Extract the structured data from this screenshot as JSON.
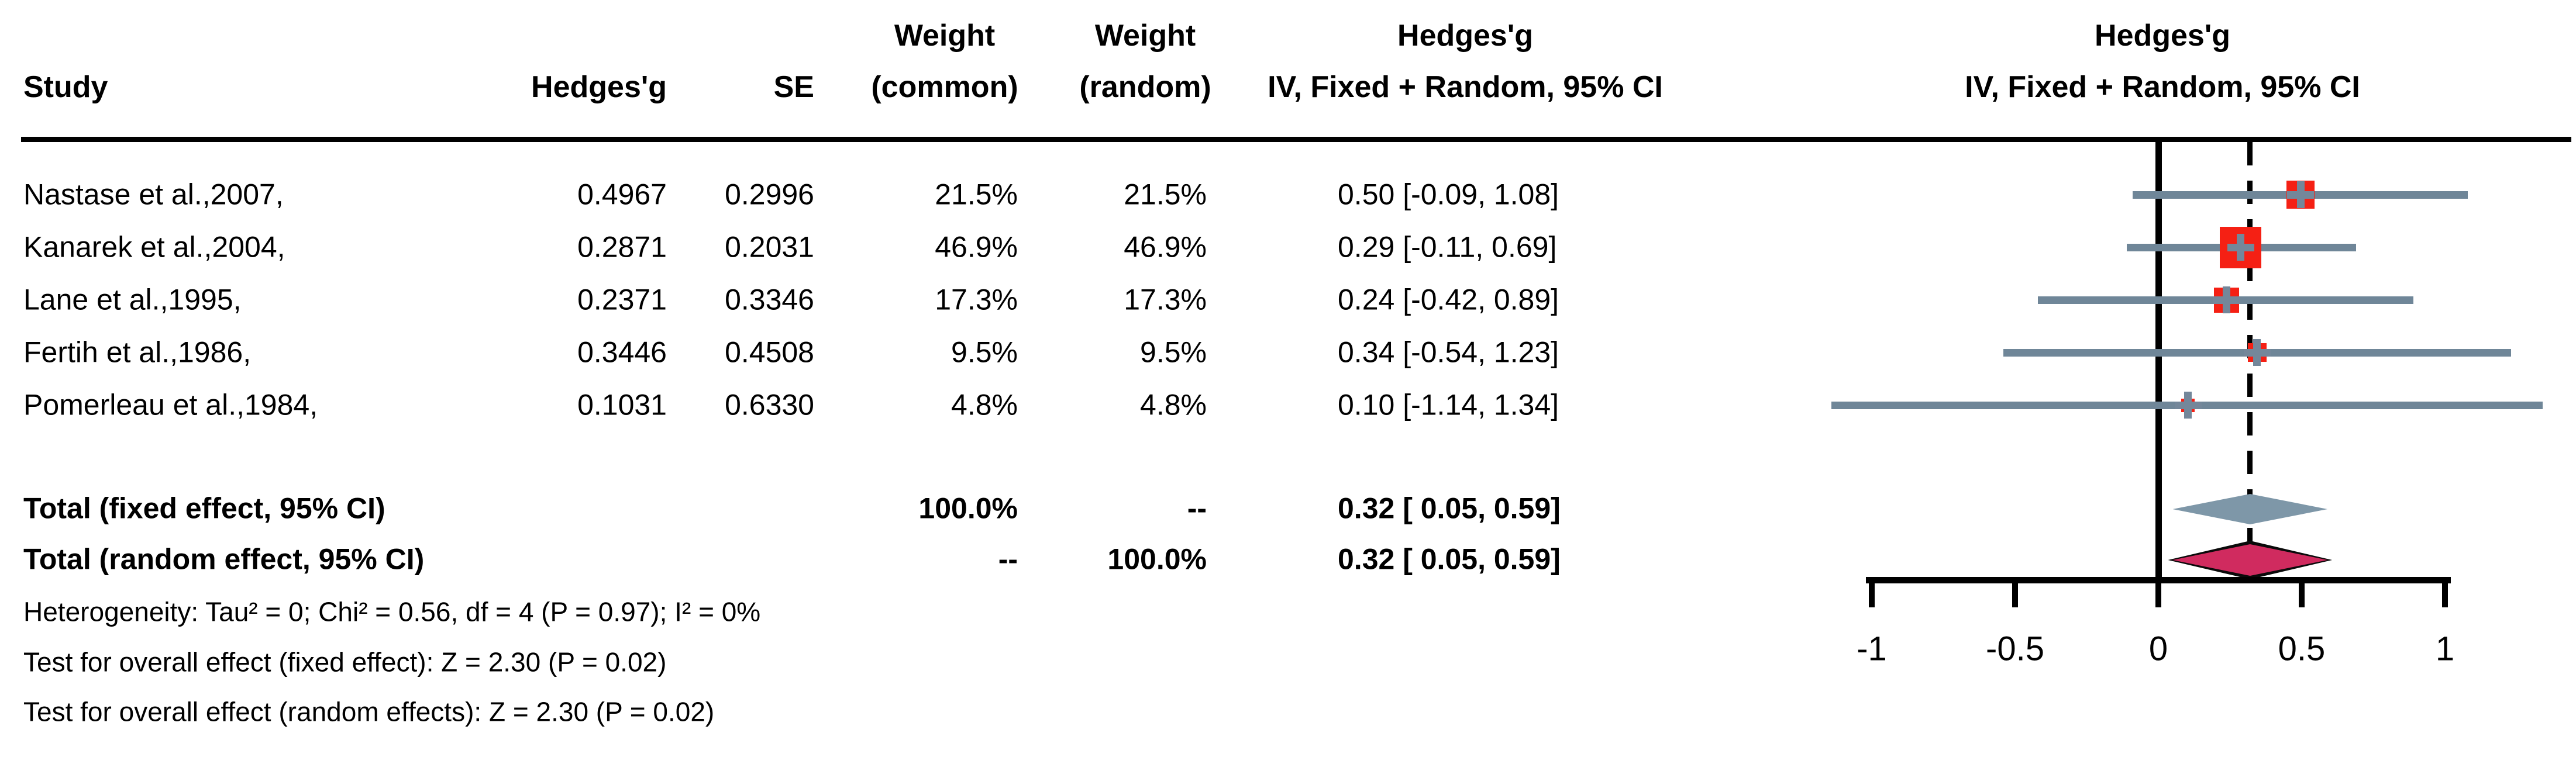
{
  "table": {
    "headers": {
      "study": "Study",
      "hedges_g": "Hedges'g",
      "se": "SE",
      "weight_common_line1": "Weight",
      "weight_common_line2": "(common)",
      "weight_random_line1": "Weight",
      "weight_random_line2": "(random)",
      "ci_col_line1": "Hedges'g",
      "ci_col_line2": "IV, Fixed + Random, 95% CI"
    },
    "rows": [
      {
        "study": "Nastase et al.,2007,",
        "hedges_g": "0.4967",
        "se": "0.2996",
        "weight_common": "21.5%",
        "weight_random": "21.5%",
        "ci_text": "0.50 [-0.09, 1.08]"
      },
      {
        "study": "Kanarek et al.,2004,",
        "hedges_g": "0.2871",
        "se": "0.2031",
        "weight_common": "46.9%",
        "weight_random": "46.9%",
        "ci_text": "0.29 [-0.11, 0.69]"
      },
      {
        "study": "Lane et al.,1995,",
        "hedges_g": "0.2371",
        "se": "0.3346",
        "weight_common": "17.3%",
        "weight_random": "17.3%",
        "ci_text": "0.24 [-0.42, 0.89]"
      },
      {
        "study": "Fertih et al.,1986,",
        "hedges_g": "0.3446",
        "se": "0.4508",
        "weight_common": "9.5%",
        "weight_random": "9.5%",
        "ci_text": "0.34 [-0.54, 1.23]"
      },
      {
        "study": "Pomerleau et al.,1984,",
        "hedges_g": "0.1031",
        "se": "0.6330",
        "weight_common": "4.8%",
        "weight_random": "4.8%",
        "ci_text": "0.10 [-1.14, 1.34]"
      }
    ],
    "totals": [
      {
        "label": "Total (fixed effect, 95% CI)",
        "weight_common": "100.0%",
        "weight_random": "--",
        "ci_text": "0.32 [ 0.05, 0.59]"
      },
      {
        "label": "Total (random effect, 95% CI)",
        "weight_common": "--",
        "weight_random": "100.0%",
        "ci_text": "0.32 [ 0.05, 0.59]"
      }
    ],
    "footnotes": [
      "Heterogeneity: Tau² = 0; Chi² = 0.56, df = 4 (P = 0.97); I² = 0%",
      "Test for overall effect (fixed effect): Z = 2.30 (P = 0.02)",
      "Test for overall effect (random effects): Z = 2.30 (P = 0.02)"
    ]
  },
  "plot_header": {
    "line1": "Hedges'g",
    "line2": "IV, Fixed + Random, 95% CI"
  },
  "chart_data": {
    "type": "forest",
    "effect_measure": "Hedges'g",
    "x_axis": {
      "tick_values": [
        -1,
        -0.5,
        0,
        0.5,
        1
      ],
      "tick_labels": [
        "-1",
        "-0.5",
        "0",
        "0.5",
        "1"
      ],
      "range": [
        -1.35,
        1.4
      ],
      "zero_line": 0,
      "pooled_dashed_line": 0.32
    },
    "studies": [
      {
        "name": "Nastase et al.,2007,",
        "effect": 0.4967,
        "se": 0.2996,
        "ci_low": -0.09,
        "ci_high": 1.08,
        "weight_common_pct": 21.5,
        "weight_random_pct": 21.5
      },
      {
        "name": "Kanarek et al.,2004,",
        "effect": 0.2871,
        "se": 0.2031,
        "ci_low": -0.11,
        "ci_high": 0.69,
        "weight_common_pct": 46.9,
        "weight_random_pct": 46.9
      },
      {
        "name": "Lane et al.,1995,",
        "effect": 0.2371,
        "se": 0.3346,
        "ci_low": -0.42,
        "ci_high": 0.89,
        "weight_common_pct": 17.3,
        "weight_random_pct": 17.3
      },
      {
        "name": "Fertih et al.,1986,",
        "effect": 0.3446,
        "se": 0.4508,
        "ci_low": -0.54,
        "ci_high": 1.23,
        "weight_common_pct": 9.5,
        "weight_random_pct": 9.5
      },
      {
        "name": "Pomerleau et al.,1984,",
        "effect": 0.1031,
        "se": 0.633,
        "ci_low": -1.14,
        "ci_high": 1.34,
        "weight_common_pct": 4.8,
        "weight_random_pct": 4.8
      }
    ],
    "pooled": [
      {
        "label": "Total (fixed effect, 95% CI)",
        "model": "fixed",
        "effect": 0.32,
        "ci_low": 0.05,
        "ci_high": 0.59
      },
      {
        "label": "Total (random effect, 95% CI)",
        "model": "random",
        "effect": 0.32,
        "ci_low": 0.05,
        "ci_high": 0.59
      }
    ],
    "heterogeneity": {
      "tau2": 0,
      "chi2": 0.56,
      "df": 4,
      "p": 0.97,
      "i2_pct": 0
    },
    "overall_effect_tests": [
      {
        "model": "fixed",
        "z": 2.3,
        "p": 0.02
      },
      {
        "model": "random",
        "z": 2.3,
        "p": 0.02
      }
    ],
    "colors": {
      "ci_line": "#6F8698",
      "plus_marker": "#74879A",
      "square": "#F52014",
      "diamond_fixed": "#7E97A8",
      "diamond_random": "#D02B5F",
      "diamond_random_border": "#0A0A0A",
      "axis": "#000000",
      "text": "#000000"
    },
    "legend_position": "none",
    "grid": false
  }
}
